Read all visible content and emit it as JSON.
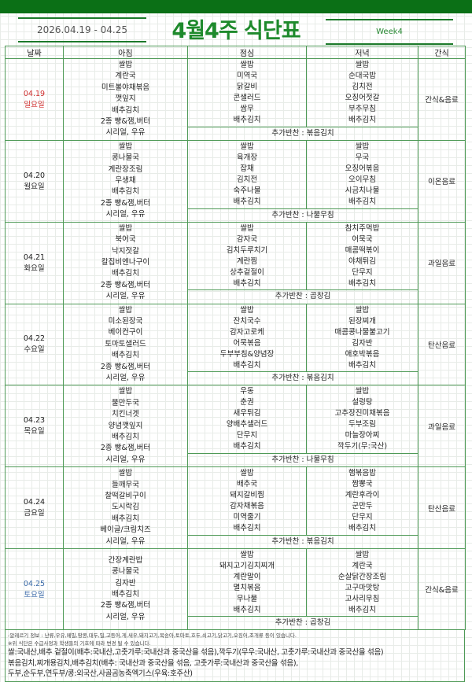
{
  "header": {
    "date_range": "2026.04.19 - 04.25",
    "title": "4월4주 식단표",
    "week": "Week4"
  },
  "colors": {
    "accent": "#0b7016",
    "sunday": "#d03030",
    "saturday": "#3a6aa8",
    "border": "#4f9a57"
  },
  "columns": [
    "날짜",
    "아침",
    "점심",
    "저녁",
    "간식"
  ],
  "extra_label": "추가반찬 : ",
  "days": [
    {
      "date": "04.19",
      "weekday": "일요일",
      "breakfast": [
        "쌀밥",
        "계란국",
        "미트볼야채볶음",
        "깻잎지",
        "배추김치",
        "2종 빵&잼,버터",
        "시리얼, 우유"
      ],
      "lunch": [
        "쌀밥",
        "미역국",
        "닭갈비",
        "콘샐러드",
        "쌈무",
        "배추김치"
      ],
      "dinner": [
        "쌀밥",
        "순대국밥",
        "김치전",
        "오징어젓갈",
        "부추무침",
        "배추김치"
      ],
      "extra": "볶음김치",
      "snack": "간식&음료"
    },
    {
      "date": "04.20",
      "weekday": "월요일",
      "breakfast": [
        "쌀밥",
        "콩나물국",
        "계란장조림",
        "무생채",
        "배추김치",
        "2종 빵&잼,버터",
        "시리얼, 우유"
      ],
      "lunch": [
        "쌀밥",
        "육개장",
        "잡채",
        "김치전",
        "숙주나물",
        "배추김치"
      ],
      "dinner": [
        "쌀밥",
        "무국",
        "오징어볶음",
        "오이무침",
        "시금치나물",
        "배추김치"
      ],
      "extra": "나물무침",
      "snack": "이온음료"
    },
    {
      "date": "04.21",
      "weekday": "화요일",
      "breakfast": [
        "쌀밥",
        "북어국",
        "낙지젓갈",
        "칼집비엔나구이",
        "배추김치",
        "2종 빵&잼,버터",
        "시리얼, 우유"
      ],
      "lunch": [
        "쌀밥",
        "감자국",
        "김치두루치기",
        "계란찜",
        "상추겉절이",
        "배추김치"
      ],
      "dinner": [
        "참치주먹밥",
        "어묵국",
        "매콤떡볶이",
        "야채튀김",
        "단무지",
        "배추김치"
      ],
      "extra": "곱창김",
      "snack": "과일음료"
    },
    {
      "date": "04.22",
      "weekday": "수요일",
      "breakfast": [
        "쌀밥",
        "미소된장국",
        "베이컨구이",
        "토마토샐러드",
        "배추김치",
        "2종 빵&잼,버터",
        "시리얼, 우유"
      ],
      "lunch": [
        "쌀밥",
        "잔치국수",
        "감자고로케",
        "어묵볶음",
        "두부부침&양념장",
        "배추김치"
      ],
      "dinner": [
        "쌀밥",
        "된장찌개",
        "매콤콩나물불고기",
        "김자반",
        "애호박볶음",
        "배추김치"
      ],
      "extra": "볶음김치",
      "snack": "탄산음료"
    },
    {
      "date": "04.23",
      "weekday": "목요일",
      "breakfast": [
        "쌀밥",
        "물만두국",
        "치킨너겟",
        "양념깻잎지",
        "배추김치",
        "2종 빵&잼,버터",
        "시리얼, 우유"
      ],
      "lunch": [
        "우동",
        "춘권",
        "새우튀김",
        "양배추샐러드",
        "단무지",
        "배추김치"
      ],
      "dinner": [
        "쌀밥",
        "설렁탕",
        "고추장진미채볶음",
        "두부조림",
        "마늘장아찌",
        "깍두기(무:국산)"
      ],
      "extra": "나물무침",
      "snack": "과일음료"
    },
    {
      "date": "04.24",
      "weekday": "금요일",
      "breakfast": [
        "쌀밥",
        "들깨무국",
        "찰떡갈비구이",
        "도시락김",
        "배추김치",
        "베이글/크림치즈",
        "시리얼, 우유"
      ],
      "lunch": [
        "쌀밥",
        "배추국",
        "돼지갈비찜",
        "감자채볶음",
        "미역줄기",
        "배추김치"
      ],
      "dinner": [
        "햄볶음밥",
        "짬뽕국",
        "계란후라이",
        "군만두",
        "단무지",
        "배추김치"
      ],
      "extra": "볶음김치",
      "snack": "탄산음료"
    },
    {
      "date": "04.25",
      "weekday": "토요일",
      "breakfast": [
        "간장계란밥",
        "콩나물국",
        "김자반",
        "배추김치",
        "2종 빵&잼,버터",
        "시리얼, 우유"
      ],
      "lunch": [
        "쌀밥",
        "돼지고기김치찌개",
        "계란말이",
        "멸치볶음",
        "무나물",
        "배추김치"
      ],
      "dinner": [
        "쌀밥",
        "계란국",
        "순살닭간장조림",
        "고구마맛탕",
        "고사리무침",
        "배추김치"
      ],
      "extra": "곱창김",
      "snack": "간식&음료"
    }
  ],
  "footer": {
    "allergy": "-알레르기 정보 : 난류,우유,메밀,땅콩,대두,밀,고등어,게,새우,돼지고기,복숭아,토마토,호두,쇠고기,닭고기,오징어,조개류 등이 있습니다.",
    "notice": "※위 식단은 수급사정과 학생들의 기호에 따라 변경 될 수 있습니다.",
    "origin": [
      "쌀:국내산,배추 겉절이(배추:국내산,고춧가루:국내산과 중국산을 섞음),깍두기(무우:국내산, 고춧가루:국내산과 중국산을 섞음)",
      "볶음김치,찌개용김치,배추김치(배추: 국내산과 중국산을 섞음, 고춧가루:국내산과 중국산을 섞음),",
      "두부,순두부,연두부/콩:외국산,사골곰농축엑기스(우육:호주산)"
    ]
  }
}
